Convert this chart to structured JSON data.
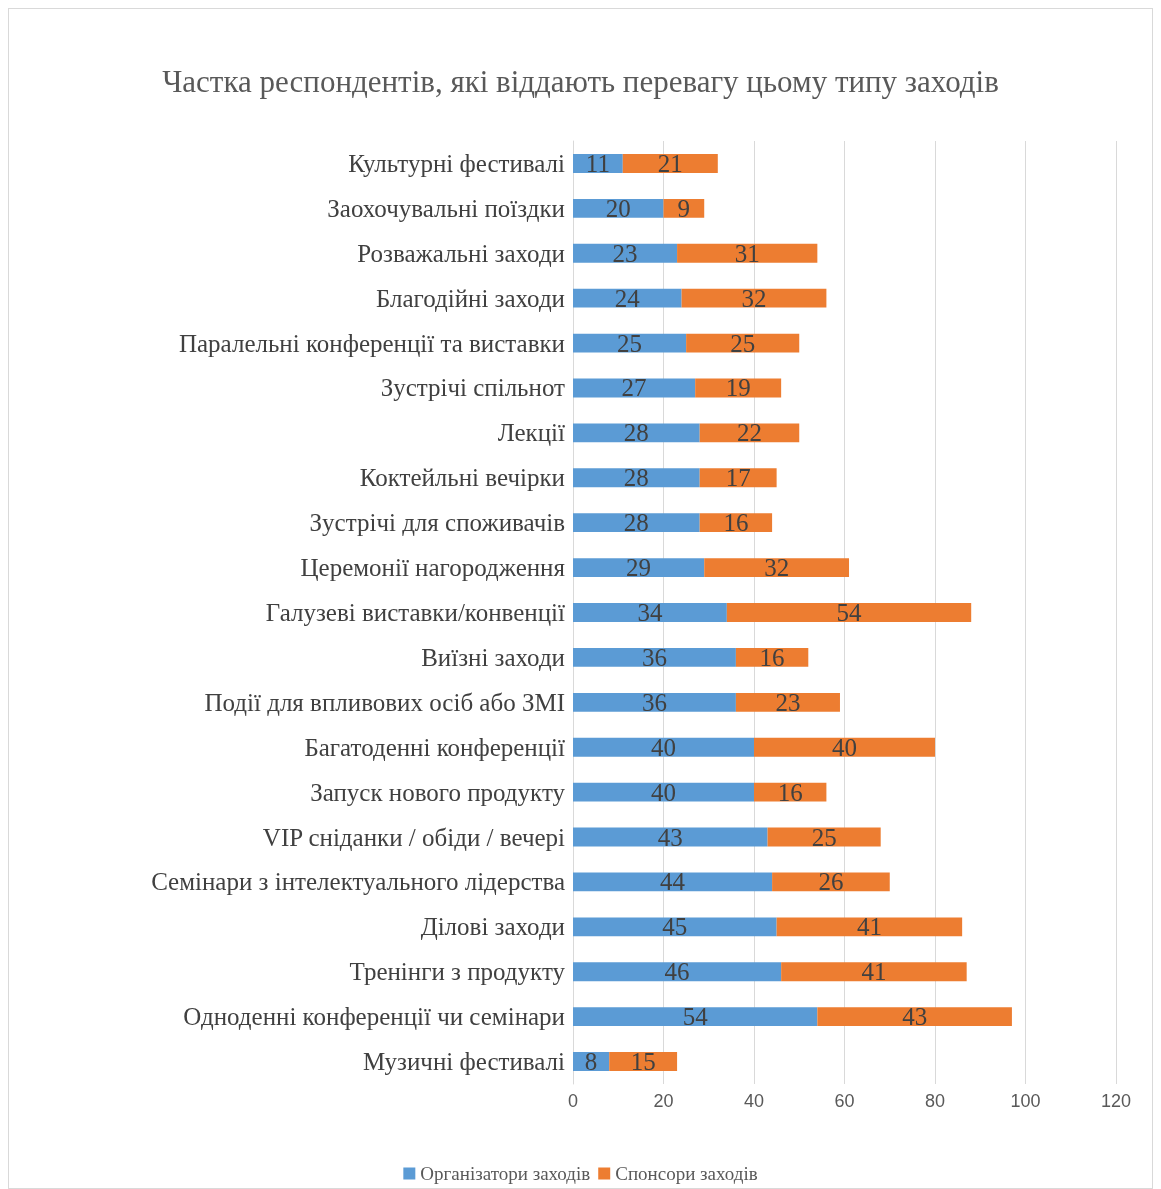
{
  "chart_data": {
    "type": "bar",
    "orientation": "horizontal",
    "stacked": true,
    "title": "Частка респондентів, які віддають перевагу цьому типу заходів",
    "categories": [
      "Культурні фестивалі",
      "Заохочувальні поїздки",
      "Розважальні заходи",
      "Благодійні заходи",
      "Паралельні конференції та виставки",
      "Зустрічі спільнот",
      "Лекції",
      "Коктейльні вечірки",
      "Зустрічі для споживачів",
      "Церемонії нагородження",
      "Галузеві виставки/конвенції",
      "Виїзні заходи",
      "Події для впливових осіб або ЗМІ",
      "Багатоденні конференції",
      "Запуск нового продукту",
      "VIP сніданки / обіди / вечері",
      "Семінари з інтелектуального лідерства",
      "Ділові заходи",
      "Тренінги з продукту",
      "Одноденні конференції чи семінари",
      "Музичні фестивалі"
    ],
    "series": [
      {
        "name": "Організатори заходів",
        "color": "#5b9bd5",
        "values": [
          11,
          20,
          23,
          24,
          25,
          27,
          28,
          28,
          28,
          29,
          34,
          36,
          36,
          40,
          40,
          43,
          44,
          45,
          46,
          54,
          8
        ]
      },
      {
        "name": "Спонсори заходів",
        "color": "#ed7d31",
        "values": [
          21,
          9,
          31,
          32,
          25,
          19,
          22,
          17,
          16,
          32,
          54,
          16,
          23,
          40,
          16,
          25,
          26,
          41,
          41,
          43,
          15
        ]
      }
    ],
    "xlim": [
      0,
      120
    ],
    "xticks": [
      0,
      20,
      40,
      60,
      80,
      100,
      120
    ],
    "grid": "x",
    "legend": "bottom",
    "data_labels": true
  }
}
